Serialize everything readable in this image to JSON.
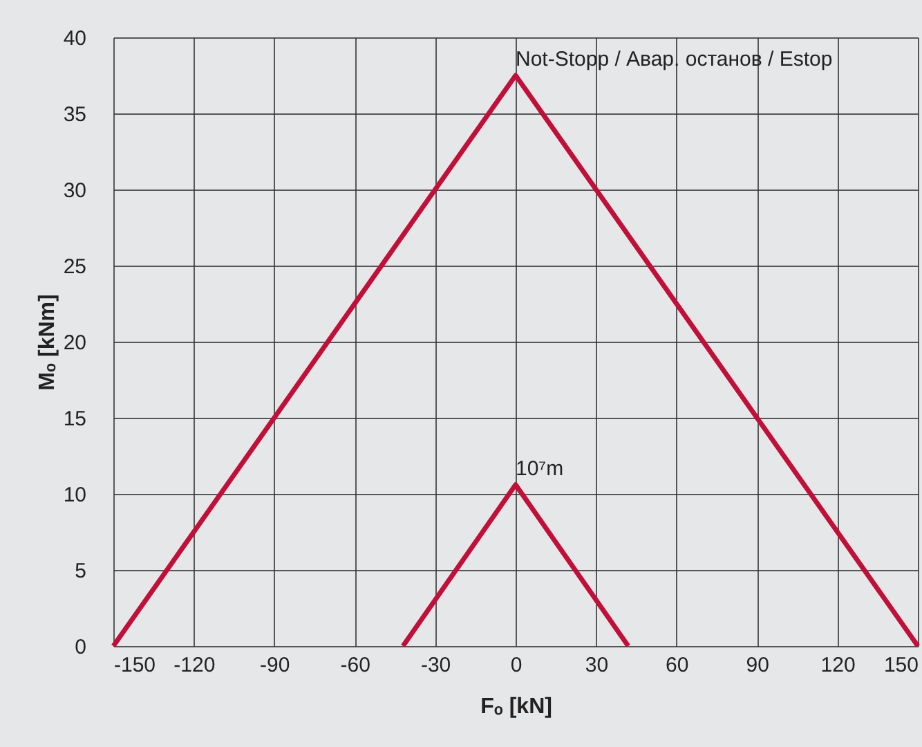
{
  "chart_data": {
    "type": "line",
    "xlabel": "Fₒ [kN]",
    "ylabel": "Mₒ [kNm]",
    "series": [
      {
        "color": "#c0103a",
        "x": [
          -150,
          0,
          150
        ],
        "values": [
          0,
          37.5,
          0
        ]
      },
      {
        "color": "#c0103a",
        "x": [
          -42,
          0,
          42
        ],
        "values": [
          0,
          10.6,
          0
        ]
      }
    ],
    "xlim": [
      -150,
      150
    ],
    "xticks": [
      -150,
      -120,
      -90,
      -60,
      -30,
      0,
      30,
      60,
      90,
      120,
      150
    ],
    "ylim": [
      0,
      40
    ],
    "yticks": [
      0,
      5,
      10,
      15,
      20,
      25,
      30,
      35,
      40
    ],
    "grid": true,
    "marker": "none",
    "line_style": "solid",
    "annotations": [
      {
        "text": "Not-Stopp / Авар. останов / Estop",
        "x": 0,
        "y": 37.5
      },
      {
        "text": "10⁷m",
        "x": 0,
        "y": 10.6
      }
    ]
  }
}
